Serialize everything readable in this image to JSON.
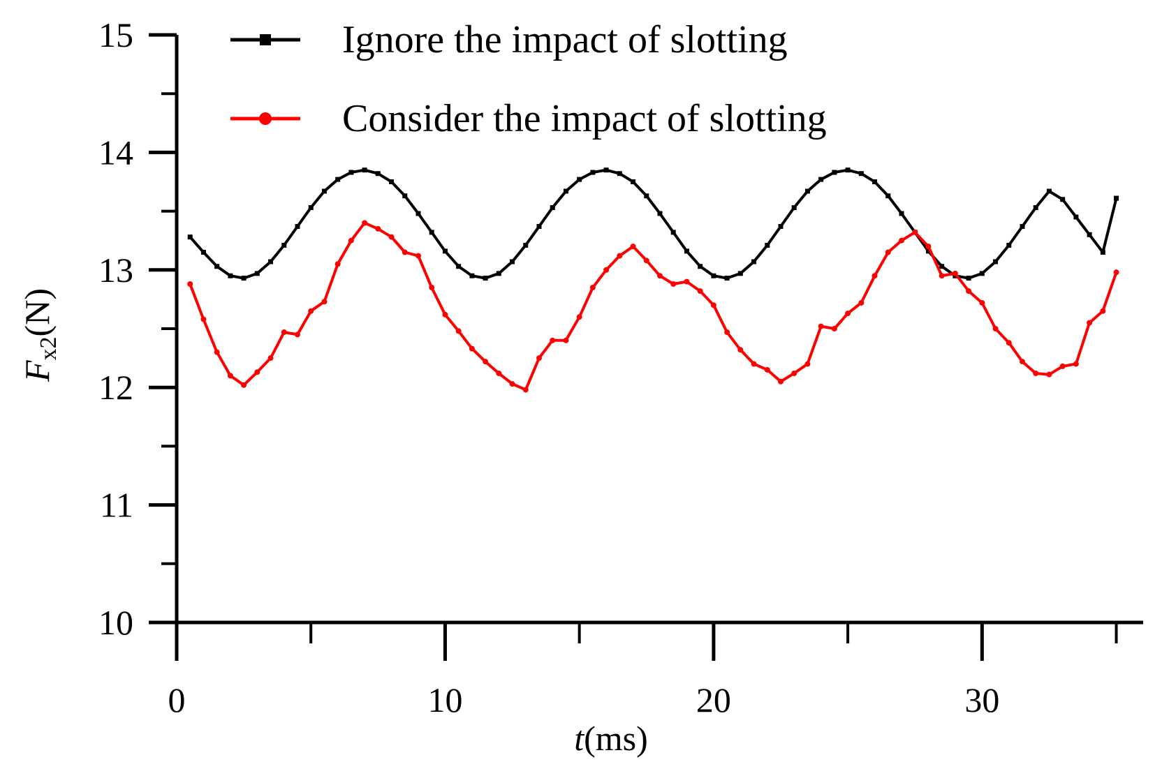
{
  "chart_data": {
    "type": "line",
    "title": "",
    "xlabel": "t(ms)",
    "xlabel_parts": {
      "symbol": "t",
      "unit": "(ms)"
    },
    "ylabel": "Fx2(N)",
    "ylabel_parts": {
      "symbol": "F",
      "subscript": "x2",
      "unit": "(N)"
    },
    "xlim": [
      0,
      36
    ],
    "ylim": [
      10,
      15
    ],
    "xticks": [
      0,
      10,
      20,
      30
    ],
    "xtick_labels": [
      "0",
      "10",
      "20",
      "30"
    ],
    "xticks_minor": [
      5,
      15,
      25,
      35
    ],
    "yticks": [
      10,
      11,
      12,
      13,
      14,
      15
    ],
    "ytick_labels": [
      "10",
      "11",
      "12",
      "13",
      "14",
      "15"
    ],
    "yticks_minor": [
      10.5,
      11.5,
      12.5,
      13.5,
      14.5
    ],
    "grid": false,
    "legend_position": "top",
    "series": [
      {
        "name": "Ignore the impact of slotting",
        "color": "#000000",
        "marker": "square",
        "x": [
          0.5,
          1.0,
          1.5,
          2.0,
          2.5,
          3.0,
          3.5,
          4.0,
          4.5,
          5.0,
          5.5,
          6.0,
          6.5,
          7.0,
          7.5,
          8.0,
          8.5,
          9.0,
          9.5,
          10.0,
          10.5,
          11.0,
          11.5,
          12.0,
          12.5,
          13.0,
          13.5,
          14.0,
          14.5,
          15.0,
          15.5,
          16.0,
          16.5,
          17.0,
          17.5,
          18.0,
          18.5,
          19.0,
          19.5,
          20.0,
          20.5,
          21.0,
          21.5,
          22.0,
          22.5,
          23.0,
          23.5,
          24.0,
          24.5,
          25.0,
          25.5,
          26.0,
          26.5,
          27.0,
          27.5,
          28.0,
          28.5,
          29.0,
          29.5,
          30.0,
          30.5,
          31.0,
          31.5,
          32.0,
          32.5,
          33.0,
          33.5,
          34.0,
          34.5,
          35.0
        ],
        "y": [
          13.28,
          13.15,
          13.03,
          12.95,
          12.93,
          12.97,
          13.07,
          13.21,
          13.37,
          13.53,
          13.67,
          13.77,
          13.83,
          13.85,
          13.82,
          13.75,
          13.63,
          13.48,
          13.32,
          13.16,
          13.03,
          12.95,
          12.93,
          12.97,
          13.07,
          13.21,
          13.37,
          13.53,
          13.67,
          13.77,
          13.83,
          13.85,
          13.82,
          13.75,
          13.63,
          13.48,
          13.32,
          13.16,
          13.03,
          12.95,
          12.93,
          12.97,
          13.07,
          13.21,
          13.37,
          13.53,
          13.67,
          13.77,
          13.83,
          13.85,
          13.82,
          13.75,
          13.63,
          13.48,
          13.32,
          13.16,
          13.03,
          12.95,
          12.93,
          12.97,
          13.07,
          13.21,
          13.37,
          13.53,
          13.67,
          13.6,
          13.45,
          13.3,
          13.15,
          13.61
        ]
      },
      {
        "name": "Consider the impact of slotting",
        "color": "#ff0000",
        "marker": "circle",
        "x": [
          0.5,
          1.0,
          1.5,
          2.0,
          2.5,
          3.0,
          3.5,
          4.0,
          4.5,
          5.0,
          5.5,
          6.0,
          6.5,
          7.0,
          7.5,
          8.0,
          8.5,
          9.0,
          9.5,
          10.0,
          10.5,
          11.0,
          11.5,
          12.0,
          12.5,
          13.0,
          13.5,
          14.0,
          14.5,
          15.0,
          15.5,
          16.0,
          16.5,
          17.0,
          17.5,
          18.0,
          18.5,
          19.0,
          19.5,
          20.0,
          20.5,
          21.0,
          21.5,
          22.0,
          22.5,
          23.0,
          23.5,
          24.0,
          24.5,
          25.0,
          25.5,
          26.0,
          26.5,
          27.0,
          27.5,
          28.0,
          28.5,
          29.0,
          29.5,
          30.0,
          30.5,
          31.0,
          31.5,
          32.0,
          32.5,
          33.0,
          33.5,
          34.0,
          34.5,
          35.0
        ],
        "y": [
          12.88,
          12.58,
          12.3,
          12.1,
          12.02,
          12.13,
          12.25,
          12.47,
          12.45,
          12.65,
          12.73,
          13.05,
          13.25,
          13.4,
          13.35,
          13.28,
          13.15,
          13.12,
          12.85,
          12.62,
          12.48,
          12.33,
          12.22,
          12.12,
          12.03,
          11.98,
          12.25,
          12.4,
          12.4,
          12.6,
          12.85,
          13.0,
          13.12,
          13.2,
          13.08,
          12.95,
          12.88,
          12.9,
          12.82,
          12.7,
          12.47,
          12.32,
          12.2,
          12.15,
          12.05,
          12.12,
          12.2,
          12.52,
          12.5,
          12.63,
          12.72,
          12.95,
          13.15,
          13.25,
          13.32,
          13.2,
          12.95,
          12.97,
          12.82,
          12.72,
          12.5,
          12.38,
          12.22,
          12.12,
          12.11,
          12.18,
          12.2,
          12.55,
          12.65,
          12.98
        ]
      }
    ]
  }
}
